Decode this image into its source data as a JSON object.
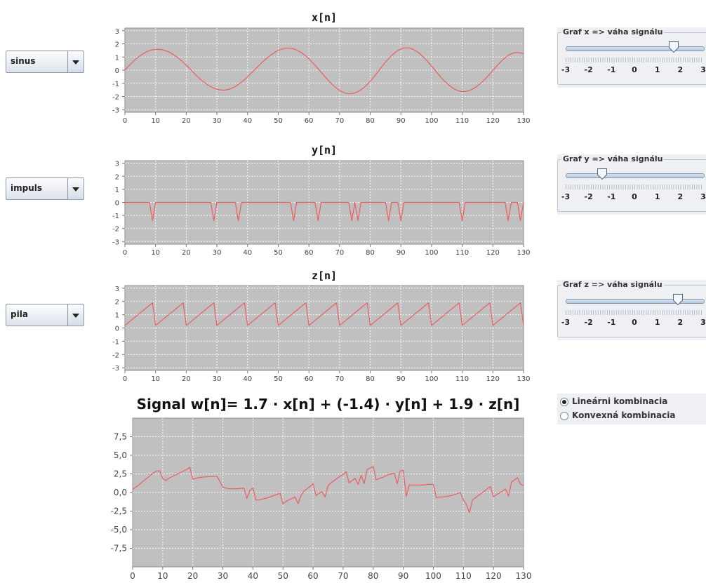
{
  "controls": [
    {
      "signal": "sinus",
      "panel_title": "Graf x => váha signálu",
      "weight": 1.7
    },
    {
      "signal": "impuls",
      "panel_title": "Graf y => váha signálu",
      "weight": -1.4
    },
    {
      "signal": "pila",
      "panel_title": "Graf z => váha signálu",
      "weight": 1.9
    }
  ],
  "slider_labels": [
    "-3",
    "-2",
    "-1",
    "0",
    "1",
    "2",
    "3"
  ],
  "radio_options": [
    {
      "label": "Lineárni kombinacia",
      "selected": true
    },
    {
      "label": "Konvexná kombinacia",
      "selected": false
    }
  ],
  "colors": {
    "plot_bg": "#c0c0c0",
    "line": "#ee5c5c",
    "grid": "#ffffff"
  },
  "chart_data": [
    {
      "type": "line",
      "title": "x[n]",
      "xlim": [
        0,
        130
      ],
      "ylim": [
        -3.2,
        3.2
      ],
      "x_ticks": [
        "0",
        "10",
        "20",
        "30",
        "40",
        "50",
        "60",
        "70",
        "80",
        "90",
        "100",
        "110",
        "120",
        "130"
      ],
      "y_ticks": [
        "-3",
        "-2",
        "-1",
        "0",
        "1",
        "2",
        "3"
      ],
      "grid": true,
      "series": [
        {
          "values": [
            0,
            0.26,
            0.5,
            0.73,
            0.93,
            1.1,
            1.26,
            1.39,
            1.48,
            1.55,
            1.58,
            1.58,
            1.56,
            1.5,
            1.42,
            1.31,
            1.16,
            0.99,
            0.8,
            0.6,
            0.38,
            0.15,
            -0.09,
            -0.33,
            -0.56,
            -0.77,
            -0.95,
            -1.12,
            -1.26,
            -1.37,
            -1.45,
            -1.5,
            -1.52,
            -1.5,
            -1.45,
            -1.36,
            -1.24,
            -1.09,
            -0.91,
            -0.72,
            -0.5,
            -0.27,
            -0.04,
            0.19,
            0.42,
            0.65,
            0.86,
            1.05,
            1.22,
            1.37,
            1.5,
            1.59,
            1.65,
            1.68,
            1.67,
            1.62,
            1.53,
            1.41,
            1.26,
            1.07,
            0.86,
            0.62,
            0.37,
            0.11,
            -0.16,
            -0.43,
            -0.69,
            -0.94,
            -1.17,
            -1.37,
            -1.54,
            -1.66,
            -1.75,
            -1.79,
            -1.78,
            -1.73,
            -1.63,
            -1.49,
            -1.31,
            -1.09,
            -0.84,
            -0.57,
            -0.28,
            0.02,
            0.33,
            0.62,
            0.88,
            1.12,
            1.32,
            1.49,
            1.61,
            1.68,
            1.7,
            1.67,
            1.58,
            1.45,
            1.28,
            1.07,
            0.84,
            0.58,
            0.31,
            0.03,
            -0.25,
            -0.52,
            -0.78,
            -1.0,
            -1.2,
            -1.37,
            -1.5,
            -1.58,
            -1.62,
            -1.62,
            -1.57,
            -1.48,
            -1.36,
            -1.19,
            -1.0,
            -0.78,
            -0.54,
            -0.29,
            -0.02,
            0.25,
            0.5,
            0.73,
            0.94,
            1.11,
            1.24,
            1.32,
            1.35,
            1.32,
            1.24
          ]
        }
      ]
    },
    {
      "type": "line",
      "title": "y[n]",
      "xlim": [
        0,
        130
      ],
      "ylim": [
        -3.2,
        3.2
      ],
      "x_ticks": [
        "0",
        "10",
        "20",
        "30",
        "40",
        "50",
        "60",
        "70",
        "80",
        "90",
        "100",
        "110",
        "120",
        "130"
      ],
      "y_ticks": [
        "-3",
        "-2",
        "-1",
        "0",
        "1",
        "2",
        "3"
      ],
      "grid": true,
      "series": [
        {
          "values": [
            0,
            0,
            0,
            0,
            0,
            0,
            0,
            0,
            0,
            -1.4,
            0,
            0,
            0,
            0,
            0,
            0,
            0,
            0,
            0,
            0,
            0,
            0,
            0,
            0,
            0,
            0,
            0,
            0,
            0,
            -1.4,
            0,
            0,
            0,
            0,
            0,
            0,
            0,
            -1.4,
            0,
            0,
            0,
            0,
            0,
            0,
            0,
            0,
            0,
            0,
            0,
            0,
            0,
            0,
            0,
            0,
            0,
            -1.4,
            0,
            0,
            0,
            0,
            0,
            0,
            0,
            -1.4,
            0,
            0,
            0,
            0,
            0,
            0,
            0,
            0,
            0,
            0,
            -1.4,
            0,
            -1.4,
            0,
            0,
            0,
            0,
            0,
            0,
            0,
            0,
            0,
            -1.4,
            0,
            0,
            0,
            -1.4,
            0,
            0,
            0,
            0,
            0,
            0,
            0,
            0,
            0,
            0,
            0,
            0,
            0,
            0,
            0,
            0,
            0,
            0,
            0,
            -1.4,
            0,
            0,
            0,
            0,
            0,
            0,
            0,
            0,
            0,
            0,
            0,
            0,
            0,
            0,
            -1.4,
            0,
            0,
            0,
            -1.4,
            0
          ]
        }
      ]
    },
    {
      "type": "line",
      "title": "z[n]",
      "xlim": [
        0,
        130
      ],
      "ylim": [
        -3.2,
        3.2
      ],
      "x_ticks": [
        "0",
        "10",
        "20",
        "30",
        "40",
        "50",
        "60",
        "70",
        "80",
        "90",
        "100",
        "110",
        "120",
        "130"
      ],
      "y_ticks": [
        "-3",
        "-2",
        "-1",
        "0",
        "1",
        "2",
        "3"
      ],
      "grid": true,
      "series": [
        {
          "values": [
            0.19,
            0.38,
            0.57,
            0.76,
            0.95,
            1.14,
            1.33,
            1.52,
            1.71,
            1.9,
            0.19,
            0.38,
            0.57,
            0.76,
            0.95,
            1.14,
            1.33,
            1.52,
            1.71,
            1.9,
            0.19,
            0.38,
            0.57,
            0.76,
            0.95,
            1.14,
            1.33,
            1.52,
            1.71,
            1.9,
            0.19,
            0.38,
            0.57,
            0.76,
            0.95,
            1.14,
            1.33,
            1.52,
            1.71,
            1.9,
            0.19,
            0.38,
            0.57,
            0.76,
            0.95,
            1.14,
            1.33,
            1.52,
            1.71,
            1.9,
            0.19,
            0.38,
            0.57,
            0.76,
            0.95,
            1.14,
            1.33,
            1.52,
            1.71,
            1.9,
            0.19,
            0.38,
            0.57,
            0.76,
            0.95,
            1.14,
            1.33,
            1.52,
            1.71,
            1.9,
            0.19,
            0.38,
            0.57,
            0.76,
            0.95,
            1.14,
            1.33,
            1.52,
            1.71,
            1.9,
            0.19,
            0.38,
            0.57,
            0.76,
            0.95,
            1.14,
            1.33,
            1.52,
            1.71,
            1.9,
            0.19,
            0.38,
            0.57,
            0.76,
            0.95,
            1.14,
            1.33,
            1.52,
            1.71,
            1.9,
            0.19,
            0.38,
            0.57,
            0.76,
            0.95,
            1.14,
            1.33,
            1.52,
            1.71,
            1.9,
            0.19,
            0.38,
            0.57,
            0.76,
            0.95,
            1.14,
            1.33,
            1.52,
            1.71,
            1.9,
            0.19,
            0.38,
            0.57,
            0.76,
            0.95,
            1.14,
            1.33,
            1.52,
            1.71,
            1.9,
            0.19
          ]
        }
      ]
    },
    {
      "type": "line",
      "title": "Signal w[n]= 1.7 · x[n] + (-1.4) · y[n] + 1.9 · z[n]",
      "xlim": [
        0,
        130
      ],
      "ylim": [
        -10,
        10
      ],
      "x_ticks": [
        "0",
        "10",
        "20",
        "30",
        "40",
        "50",
        "60",
        "70",
        "80",
        "90",
        "100",
        "110",
        "120",
        "130"
      ],
      "y_ticks": [
        "-7,5",
        "-5,0",
        "-2,5",
        "0,0",
        "2,5",
        "5,0",
        "7,5"
      ],
      "grid": true,
      "series": [
        {
          "values": [
            0.4,
            0.7,
            1.0,
            1.35,
            1.7,
            2.0,
            2.35,
            2.65,
            2.9,
            2.9,
            1.9,
            1.6,
            1.9,
            2.1,
            2.3,
            2.5,
            2.7,
            2.9,
            3.1,
            3.4,
            1.8,
            1.9,
            2.0,
            2.05,
            2.1,
            2.1,
            2.15,
            2.15,
            2.2,
            1.5,
            0.7,
            0.6,
            0.5,
            0.5,
            0.5,
            0.5,
            0.55,
            0.6,
            -0.8,
            0.3,
            0.6,
            -1.0,
            -1.0,
            -0.9,
            -0.8,
            -0.7,
            -0.55,
            -0.4,
            -0.25,
            -0.1,
            -1.5,
            -1.2,
            -1.0,
            -0.8,
            -0.6,
            -1.5,
            -0.4,
            0.2,
            0.5,
            0.8,
            1.2,
            -0.4,
            -0.1,
            0.1,
            -0.6,
            0.9,
            1.3,
            1.6,
            1.9,
            2.2,
            2.4,
            2.8,
            1.3,
            1.6,
            1.9,
            1.1,
            2.3,
            1.2,
            3.1,
            3.3,
            3.5,
            1.7,
            1.9,
            2.0,
            2.2,
            2.4,
            2.5,
            2.6,
            1.2,
            2.9,
            3.0,
            -0.5,
            1.0,
            1.0,
            1.0,
            1.0,
            1.0,
            1.0,
            1.1,
            1.1,
            1.1,
            -0.7,
            -0.6,
            -0.6,
            -0.55,
            -0.5,
            -0.4,
            -0.3,
            -0.15,
            0.0,
            -1.0,
            -1.6,
            -2.7,
            -1.0,
            -0.7,
            -0.4,
            -0.1,
            0.2,
            0.5,
            0.8,
            -0.6,
            -0.3,
            -0.05,
            0.2,
            0.45,
            -0.5,
            1.4,
            1.7,
            2.0,
            1.1,
            0.95
          ]
        }
      ]
    }
  ]
}
